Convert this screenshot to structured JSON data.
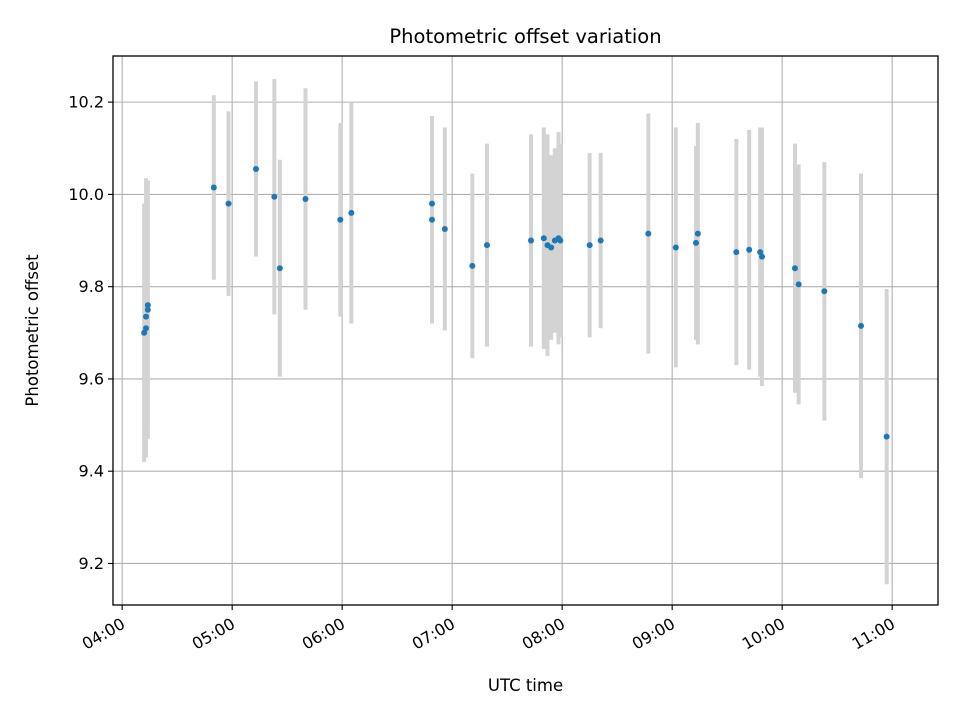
{
  "chart_data": {
    "type": "scatter",
    "title": "Photometric offset variation",
    "xlabel": "UTC time",
    "ylabel": "Photometric offset",
    "x_is_time": true,
    "xlim": [
      "03:55",
      "11:25"
    ],
    "ylim": [
      9.11,
      10.3
    ],
    "grid": true,
    "x_ticks": [
      "04:00",
      "05:00",
      "06:00",
      "07:00",
      "08:00",
      "09:00",
      "10:00",
      "11:00"
    ],
    "y_ticks": [
      "9.2",
      "9.4",
      "9.6",
      "9.8",
      "10.0",
      "10.2"
    ],
    "x_tick_rotation": 30,
    "series": [
      {
        "marker_color": "#1f77b4",
        "errorbar_color": "#d3d3d3",
        "points": [
          {
            "x": "04:12",
            "y": 9.7,
            "err": 0.28
          },
          {
            "x": "04:13",
            "y": 9.71,
            "err": 0.28
          },
          {
            "x": "04:13",
            "y": 9.735,
            "err": 0.3
          },
          {
            "x": "04:14",
            "y": 9.75,
            "err": 0.28
          },
          {
            "x": "04:14",
            "y": 9.76,
            "err": 0.27
          },
          {
            "x": "04:50",
            "y": 10.015,
            "err": 0.2
          },
          {
            "x": "04:58",
            "y": 9.98,
            "err": 0.2
          },
          {
            "x": "05:13",
            "y": 10.055,
            "err": 0.19
          },
          {
            "x": "05:23",
            "y": 9.995,
            "err": 0.255
          },
          {
            "x": "05:26",
            "y": 9.84,
            "err": 0.235
          },
          {
            "x": "05:40",
            "y": 9.99,
            "err": 0.24
          },
          {
            "x": "05:59",
            "y": 9.945,
            "err": 0.21
          },
          {
            "x": "06:05",
            "y": 9.96,
            "err": 0.24
          },
          {
            "x": "06:49",
            "y": 9.98,
            "err": 0.19
          },
          {
            "x": "06:49",
            "y": 9.945,
            "err": 0.225
          },
          {
            "x": "06:56",
            "y": 9.925,
            "err": 0.22
          },
          {
            "x": "07:11",
            "y": 9.845,
            "err": 0.2
          },
          {
            "x": "07:19",
            "y": 9.89,
            "err": 0.22
          },
          {
            "x": "07:43",
            "y": 9.9,
            "err": 0.23
          },
          {
            "x": "07:50",
            "y": 9.905,
            "err": 0.24
          },
          {
            "x": "07:52",
            "y": 9.89,
            "err": 0.24
          },
          {
            "x": "07:54",
            "y": 9.885,
            "err": 0.2
          },
          {
            "x": "07:56",
            "y": 9.9,
            "err": 0.2
          },
          {
            "x": "07:58",
            "y": 9.905,
            "err": 0.23
          },
          {
            "x": "07:59",
            "y": 9.9,
            "err": 0.21
          },
          {
            "x": "08:15",
            "y": 9.89,
            "err": 0.2
          },
          {
            "x": "08:21",
            "y": 9.9,
            "err": 0.19
          },
          {
            "x": "08:47",
            "y": 9.915,
            "err": 0.26
          },
          {
            "x": "09:02",
            "y": 9.885,
            "err": 0.26
          },
          {
            "x": "09:13",
            "y": 9.895,
            "err": 0.21
          },
          {
            "x": "09:14",
            "y": 9.915,
            "err": 0.24
          },
          {
            "x": "09:35",
            "y": 9.875,
            "err": 0.245
          },
          {
            "x": "09:42",
            "y": 9.88,
            "err": 0.26
          },
          {
            "x": "09:48",
            "y": 9.875,
            "err": 0.27
          },
          {
            "x": "09:49",
            "y": 9.865,
            "err": 0.28
          },
          {
            "x": "10:07",
            "y": 9.84,
            "err": 0.27
          },
          {
            "x": "10:09",
            "y": 9.805,
            "err": 0.26
          },
          {
            "x": "10:23",
            "y": 9.79,
            "err": 0.28
          },
          {
            "x": "10:43",
            "y": 9.715,
            "err": 0.33
          },
          {
            "x": "10:57",
            "y": 9.475,
            "err": 0.32
          }
        ]
      }
    ]
  }
}
